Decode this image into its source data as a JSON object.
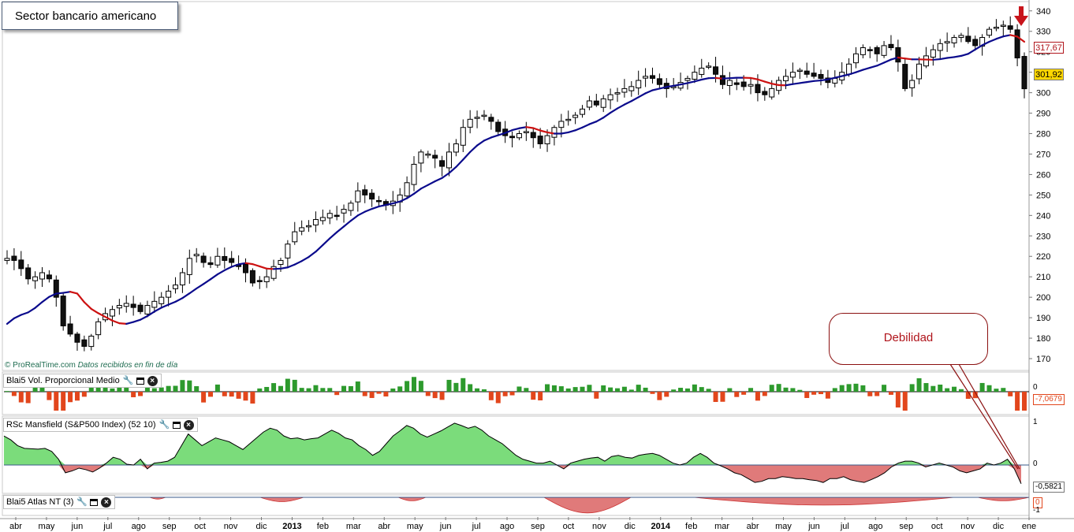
{
  "title": "Sector bancario americano",
  "watermark": {
    "brand": "© ProRealTime.com",
    "note": "Datos recibidos en fin de día"
  },
  "callout": "Debilidad",
  "price": {
    "last": "301,92",
    "ma_value": "317,67",
    "y_ticks": [
      170,
      180,
      190,
      200,
      210,
      220,
      230,
      240,
      250,
      260,
      270,
      280,
      290,
      300,
      310,
      320,
      330,
      340
    ],
    "ylim": [
      165,
      343
    ]
  },
  "x_labels": [
    "abr",
    "may",
    "jun",
    "jul",
    "ago",
    "sep",
    "oct",
    "nov",
    "dic",
    "2013",
    "feb",
    "mar",
    "abr",
    "may",
    "jun",
    "jul",
    "ago",
    "sep",
    "oct",
    "nov",
    "dic",
    "2014",
    "feb",
    "mar",
    "abr",
    "may",
    "jun",
    "jul",
    "ago",
    "sep",
    "oct",
    "nov",
    "dic",
    "ene"
  ],
  "panels": {
    "volume": {
      "label": "Blai5 Vol. Proporcional Medio",
      "value": "-7,0679",
      "zero_label": "0"
    },
    "mansfield": {
      "label": "RSc Mansfield (S&P500 Index) (52 10)",
      "ticks": [
        "1",
        "0",
        "-0,5821"
      ],
      "value": "-0,5821"
    },
    "atlas": {
      "label": "Blai5 Atlas NT (3)",
      "ticks": [
        "0",
        "-1"
      ]
    }
  },
  "colors": {
    "ma_up": "#0a0a8c",
    "ma_down": "#cc1111",
    "vol_up": "#2d9a2d",
    "vol_down": "#e2461c",
    "mansfield_pos": "#7bdc7b",
    "mansfield_neg": "#e07a7a",
    "atlas_neg": "#e07a7a",
    "arrow": "#c8141b",
    "callout": "#b0141b"
  },
  "chart_data": [
    {
      "type": "candlestick",
      "title": "Sector bancario americano",
      "period": "weekly",
      "x_start": "abr 2012",
      "x_end": "ene 2014",
      "close": [
        219,
        218,
        214,
        209,
        210,
        212,
        209,
        200,
        186,
        182,
        178,
        176,
        181,
        188,
        192,
        194,
        196,
        197,
        195,
        193,
        196,
        198,
        200,
        203,
        206,
        212,
        219,
        221,
        217,
        216,
        220,
        218,
        217,
        215,
        212,
        207,
        208,
        210,
        215,
        218,
        226,
        232,
        234,
        235,
        238,
        239,
        241,
        240,
        243,
        246,
        252,
        250,
        248,
        247,
        245,
        247,
        250,
        256,
        265,
        271,
        270,
        268,
        264,
        271,
        275,
        283,
        287,
        288,
        289,
        286,
        281,
        279,
        278,
        280,
        281,
        278,
        275,
        279,
        283,
        286,
        287,
        289,
        292,
        296,
        294,
        297,
        299,
        300,
        302,
        303,
        306,
        308,
        307,
        304,
        302,
        303,
        305,
        307,
        310,
        312,
        313,
        309,
        304,
        306,
        304,
        303,
        304,
        300,
        299,
        302,
        306,
        308,
        310,
        311,
        309,
        308,
        307,
        305,
        307,
        310,
        314,
        319,
        322,
        321,
        319,
        323,
        322,
        315,
        302,
        306,
        314,
        318,
        321,
        324,
        325,
        327,
        328,
        325,
        323,
        327,
        331,
        332,
        333,
        331,
        317,
        301.92
      ],
      "range": [
        165,
        343
      ],
      "moving_average": {
        "last": 317.67,
        "range_start": 187,
        "range_end": 318
      }
    },
    {
      "type": "bar",
      "name": "Blai5 Vol. Proporcional Medio",
      "last": -7.0679
    },
    {
      "type": "area",
      "name": "RSc Mansfield (S&P500 Index) (52 10)",
      "values": [
        0.65,
        0.55,
        0.4,
        0.33,
        0.32,
        0.31,
        0.33,
        0.25,
        0.05,
        -0.3,
        -0.25,
        -0.18,
        -0.22,
        -0.28,
        -0.18,
        -0.05,
        0.1,
        0.05,
        -0.08,
        -0.1,
        0.05,
        -0.2,
        -0.05,
        -0.03,
        0.0,
        0.1,
        0.4,
        0.7,
        0.55,
        0.4,
        0.5,
        0.6,
        0.55,
        0.5,
        0.4,
        0.3,
        0.45,
        0.6,
        0.75,
        0.85,
        0.8,
        0.65,
        0.58,
        0.6,
        0.55,
        0.58,
        0.6,
        0.7,
        0.8,
        0.72,
        0.6,
        0.55,
        0.4,
        0.3,
        0.15,
        0.25,
        0.45,
        0.65,
        0.78,
        0.92,
        0.85,
        0.7,
        0.62,
        0.7,
        0.78,
        0.88,
        0.98,
        0.92,
        0.85,
        0.9,
        0.8,
        0.65,
        0.55,
        0.45,
        0.3,
        0.15,
        0.05,
        0.0,
        -0.05,
        -0.05,
        0.0,
        -0.1,
        -0.2,
        -0.05,
        0.0,
        0.05,
        0.08,
        0.1,
        0.0,
        0.12,
        0.15,
        0.1,
        0.08,
        0.15,
        0.18,
        0.2,
        0.15,
        0.05,
        -0.05,
        -0.1,
        -0.05,
        0.1,
        0.2,
        0.1,
        -0.05,
        -0.12,
        -0.2,
        -0.3,
        -0.35,
        -0.45,
        -0.55,
        -0.52,
        -0.45,
        -0.45,
        -0.4,
        -0.42,
        -0.45,
        -0.45,
        -0.48,
        -0.5,
        -0.55,
        -0.45,
        -0.45,
        -0.4,
        -0.48,
        -0.52,
        -0.55,
        -0.48,
        -0.4,
        -0.3,
        -0.15,
        -0.05,
        0.0,
        0.0,
        -0.05,
        -0.15,
        -0.1,
        -0.05,
        -0.1,
        -0.15,
        -0.25,
        -0.3,
        -0.25,
        -0.2,
        -0.05,
        -0.1,
        -0.05,
        0.05,
        -0.2,
        -0.5821
      ],
      "ylim": [
        -0.75,
        1.08
      ]
    },
    {
      "type": "area",
      "name": "Blai5 Atlas NT (3)",
      "ylim": [
        -1.1,
        0.1
      ]
    }
  ]
}
